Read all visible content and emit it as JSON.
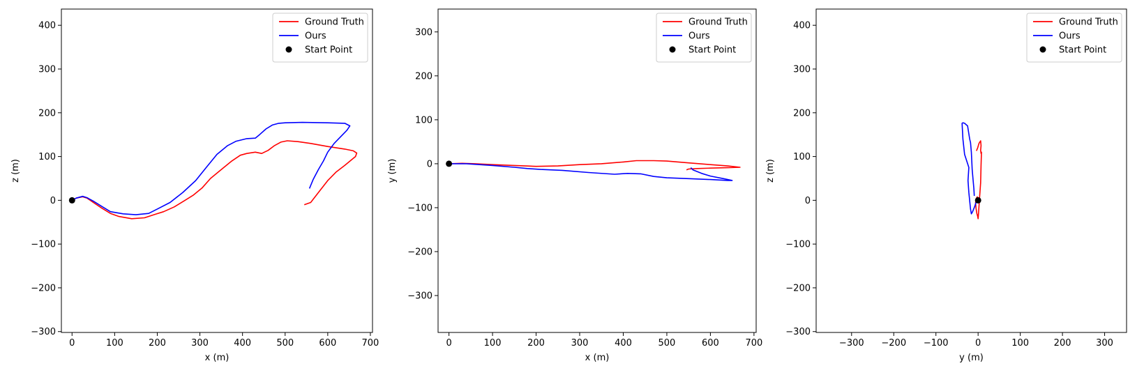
{
  "chart_data": [
    {
      "type": "line",
      "xlabel": "x (m)",
      "ylabel": "z (m)",
      "xlim": [
        -25,
        705
      ],
      "ylim": [
        -302,
        437
      ],
      "xticks": [
        0,
        100,
        200,
        300,
        400,
        500,
        600,
        700
      ],
      "yticks": [
        -300,
        -200,
        -100,
        0,
        100,
        200,
        300,
        400
      ],
      "legend_position": "top-right",
      "grid": false,
      "series": [
        {
          "name": "Ground Truth",
          "color": "#ff0000",
          "style": "line",
          "x": [
            0,
            10,
            25,
            35,
            50,
            70,
            90,
            110,
            140,
            170,
            195,
            215,
            240,
            265,
            285,
            305,
            325,
            350,
            375,
            395,
            410,
            430,
            445,
            460,
            475,
            490,
            505,
            530,
            560,
            600,
            640,
            660,
            668,
            665,
            655,
            640,
            620,
            600,
            580,
            560,
            545
          ],
          "y": [
            0,
            5,
            8,
            5,
            -5,
            -18,
            -30,
            -37,
            -42,
            -40,
            -32,
            -26,
            -15,
            0,
            12,
            28,
            50,
            70,
            90,
            103,
            107,
            110,
            107,
            114,
            125,
            133,
            136,
            134,
            130,
            123,
            117,
            113,
            108,
            100,
            92,
            80,
            65,
            45,
            20,
            -5,
            -10
          ]
        },
        {
          "name": "Ours",
          "color": "#0000ff",
          "style": "line",
          "x": [
            0,
            10,
            25,
            35,
            50,
            70,
            90,
            120,
            150,
            180,
            200,
            230,
            260,
            290,
            315,
            340,
            365,
            385,
            410,
            430,
            440,
            455,
            470,
            485,
            500,
            540,
            600,
            640,
            652,
            645,
            630,
            615,
            600,
            590,
            578,
            566,
            557
          ],
          "y": [
            0,
            5,
            9,
            6,
            -2,
            -14,
            -26,
            -31,
            -33,
            -30,
            -20,
            -5,
            18,
            45,
            75,
            105,
            125,
            135,
            141,
            142,
            150,
            163,
            172,
            176,
            177,
            178,
            177,
            176,
            170,
            160,
            145,
            130,
            110,
            90,
            70,
            48,
            27
          ]
        },
        {
          "name": "Start Point",
          "color": "#000000",
          "style": "marker",
          "x": [
            0
          ],
          "y": [
            0
          ]
        }
      ]
    },
    {
      "type": "line",
      "xlabel": "x (m)",
      "ylabel": "y (m)",
      "xlim": [
        -25,
        705
      ],
      "ylim": [
        -384,
        352
      ],
      "xticks": [
        0,
        100,
        200,
        300,
        400,
        500,
        600,
        700
      ],
      "yticks": [
        -300,
        -200,
        -100,
        0,
        100,
        200,
        300
      ],
      "legend_position": "top-right",
      "grid": false,
      "series": [
        {
          "name": "Ground Truth",
          "color": "#ff0000",
          "style": "line",
          "x": [
            0,
            30,
            60,
            100,
            150,
            200,
            250,
            300,
            350,
            400,
            430,
            470,
            500,
            550,
            600,
            640,
            668,
            640,
            600,
            570,
            550,
            545
          ],
          "y": [
            0,
            1,
            0,
            -2,
            -4,
            -6,
            -5,
            -2,
            0,
            4,
            7,
            7,
            6,
            2,
            -2,
            -5,
            -8,
            -9,
            -10,
            -11,
            -12,
            -14
          ]
        },
        {
          "name": "Ours",
          "color": "#0000ff",
          "style": "line",
          "x": [
            0,
            40,
            100,
            150,
            180,
            210,
            260,
            320,
            380,
            410,
            440,
            470,
            500,
            550,
            600,
            640,
            650,
            630,
            600,
            580,
            560,
            555
          ],
          "y": [
            0,
            0,
            -4,
            -8,
            -11,
            -13,
            -15,
            -20,
            -24,
            -22,
            -23,
            -29,
            -32,
            -34,
            -36,
            -38,
            -38,
            -34,
            -28,
            -22,
            -14,
            -9
          ]
        },
        {
          "name": "Start Point",
          "color": "#000000",
          "style": "marker",
          "x": [
            0
          ],
          "y": [
            0
          ]
        }
      ]
    },
    {
      "type": "line",
      "xlabel": "y (m)",
      "ylabel": "z (m)",
      "xlim": [
        -384,
        352
      ],
      "ylim": [
        -302,
        437
      ],
      "xticks": [
        -300,
        -200,
        -100,
        0,
        100,
        200,
        300
      ],
      "yticks": [
        -300,
        -200,
        -100,
        0,
        100,
        200,
        300,
        400
      ],
      "legend_position": "top-right",
      "grid": false,
      "series": [
        {
          "name": "Ground Truth",
          "color": "#ff0000",
          "style": "line",
          "x": [
            0,
            -1,
            -2,
            -4,
            -6,
            -5,
            -3,
            -1,
            0,
            1,
            3,
            6,
            7,
            8,
            7,
            6,
            7,
            6,
            2,
            -1,
            -4
          ],
          "y": [
            0,
            5,
            8,
            5,
            -5,
            -18,
            -30,
            -37,
            -42,
            -30,
            0,
            40,
            80,
            110,
            107,
            114,
            125,
            136,
            130,
            120,
            113
          ]
        },
        {
          "name": "Ours",
          "color": "#0000ff",
          "style": "line",
          "x": [
            0,
            0,
            -4,
            -8,
            -13,
            -16,
            -18,
            -22,
            -24,
            -22,
            -32,
            -36,
            -38,
            -36,
            -32,
            -25,
            -20,
            -18,
            -16,
            -15,
            -14,
            -12,
            -10,
            -9
          ],
          "y": [
            0,
            5,
            -2,
            -14,
            -26,
            -31,
            -20,
            18,
            45,
            75,
            105,
            140,
            176,
            177,
            176,
            170,
            140,
            132,
            110,
            90,
            70,
            48,
            27,
            10
          ]
        },
        {
          "name": "Start Point",
          "color": "#000000",
          "style": "marker",
          "x": [
            0
          ],
          "y": [
            0
          ]
        }
      ]
    }
  ]
}
